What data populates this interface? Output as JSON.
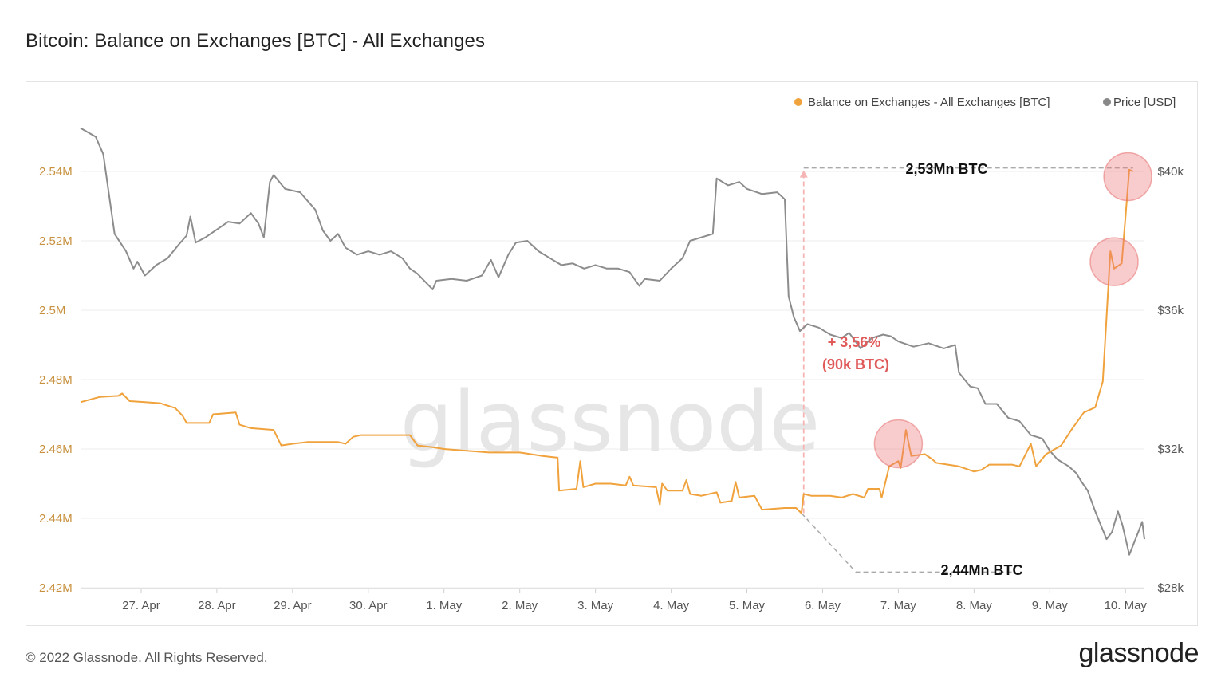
{
  "page": {
    "title": "Bitcoin: Balance on Exchanges [BTC] - All Exchanges",
    "copyright": "© 2022 Glassnode. All Rights Reserved.",
    "brand": "glassnode",
    "watermark": "glassnode"
  },
  "chart_data": {
    "type": "line",
    "title": "Bitcoin: Balance on Exchanges [BTC] - All Exchanges",
    "xlabel": "",
    "ylabel": "",
    "x_ticks": [
      "27. Apr",
      "28. Apr",
      "29. Apr",
      "30. Apr",
      "1. May",
      "2. May",
      "3. May",
      "4. May",
      "5. May",
      "6. May",
      "7. May",
      "8. May",
      "9. May",
      "10. May"
    ],
    "x_range": [
      -0.8,
      13.25
    ],
    "y_left": {
      "label": "Balance on Exchanges [BTC]",
      "ticks": [
        "2.42M",
        "2.44M",
        "2.46M",
        "2.48M",
        "2.5M",
        "2.52M",
        "2.54M"
      ],
      "tick_values": [
        2420000,
        2440000,
        2460000,
        2480000,
        2500000,
        2520000,
        2540000
      ],
      "ylim": [
        2420000,
        2540000
      ],
      "color": "#c8913f"
    },
    "y_right": {
      "label": "Price [USD]",
      "ticks": [
        "$28k",
        "$32k",
        "$36k",
        "$40k"
      ],
      "tick_values": [
        28000,
        32000,
        36000,
        40000
      ],
      "ylim": [
        28000,
        40000
      ],
      "color": "#555555"
    },
    "grid": true,
    "legend_position": "top-right",
    "legend": [
      {
        "name": "Balance on Exchanges - All Exchanges [BTC]",
        "color": "#f0a23c"
      },
      {
        "name": "Price [USD]",
        "color": "#888888"
      }
    ],
    "series": [
      {
        "name": "Balance on Exchanges - All Exchanges [BTC]",
        "axis": "left",
        "color": "#f0a23c",
        "points": [
          [
            -0.8,
            2473500
          ],
          [
            -0.55,
            2475000
          ],
          [
            -0.3,
            2475300
          ],
          [
            -0.25,
            2476000
          ],
          [
            -0.15,
            2473800
          ],
          [
            0.05,
            2473500
          ],
          [
            0.25,
            2473200
          ],
          [
            0.45,
            2471800
          ],
          [
            0.55,
            2469500
          ],
          [
            0.6,
            2467500
          ],
          [
            0.9,
            2467500
          ],
          [
            0.95,
            2470000
          ],
          [
            1.25,
            2470500
          ],
          [
            1.3,
            2467000
          ],
          [
            1.45,
            2466000
          ],
          [
            1.75,
            2465500
          ],
          [
            1.85,
            2461000
          ],
          [
            2.0,
            2461500
          ],
          [
            2.2,
            2462000
          ],
          [
            2.6,
            2462000
          ],
          [
            2.7,
            2461500
          ],
          [
            2.8,
            2463500
          ],
          [
            2.9,
            2464000
          ],
          [
            3.55,
            2464000
          ],
          [
            3.65,
            2461000
          ],
          [
            3.85,
            2460500
          ],
          [
            4.0,
            2460000
          ],
          [
            4.3,
            2459500
          ],
          [
            4.6,
            2459000
          ],
          [
            5.0,
            2459000
          ],
          [
            5.3,
            2458000
          ],
          [
            5.5,
            2457500
          ],
          [
            5.52,
            2448000
          ],
          [
            5.75,
            2448500
          ],
          [
            5.8,
            2456500
          ],
          [
            5.84,
            2449000
          ],
          [
            6.0,
            2450000
          ],
          [
            6.2,
            2450000
          ],
          [
            6.4,
            2449500
          ],
          [
            6.45,
            2452000
          ],
          [
            6.5,
            2449500
          ],
          [
            6.8,
            2449000
          ],
          [
            6.85,
            2444000
          ],
          [
            6.88,
            2450000
          ],
          [
            6.95,
            2448000
          ],
          [
            7.15,
            2448000
          ],
          [
            7.2,
            2451000
          ],
          [
            7.25,
            2447000
          ],
          [
            7.4,
            2446500
          ],
          [
            7.6,
            2447500
          ],
          [
            7.65,
            2444500
          ],
          [
            7.8,
            2445000
          ],
          [
            7.85,
            2450500
          ],
          [
            7.9,
            2446000
          ],
          [
            8.1,
            2446500
          ],
          [
            8.2,
            2442500
          ],
          [
            8.5,
            2443000
          ],
          [
            8.65,
            2443000
          ],
          [
            8.72,
            2441500
          ],
          [
            8.75,
            2447000
          ],
          [
            8.85,
            2446500
          ],
          [
            9.1,
            2446500
          ],
          [
            9.25,
            2446000
          ],
          [
            9.4,
            2447000
          ],
          [
            9.55,
            2446000
          ],
          [
            9.6,
            2448500
          ],
          [
            9.75,
            2448500
          ],
          [
            9.78,
            2446000
          ],
          [
            9.88,
            2455000
          ],
          [
            10.0,
            2456500
          ],
          [
            10.03,
            2454500
          ],
          [
            10.1,
            2465500
          ],
          [
            10.17,
            2458000
          ],
          [
            10.35,
            2458500
          ],
          [
            10.45,
            2457000
          ],
          [
            10.5,
            2456000
          ],
          [
            10.8,
            2455000
          ],
          [
            11.0,
            2453500
          ],
          [
            11.1,
            2454000
          ],
          [
            11.2,
            2455500
          ],
          [
            11.5,
            2455500
          ],
          [
            11.6,
            2455000
          ],
          [
            11.75,
            2461500
          ],
          [
            11.82,
            2455000
          ],
          [
            11.95,
            2458500
          ],
          [
            12.15,
            2461000
          ],
          [
            12.3,
            2466000
          ],
          [
            12.45,
            2470500
          ],
          [
            12.6,
            2472000
          ],
          [
            12.7,
            2479500
          ],
          [
            12.8,
            2517000
          ],
          [
            12.85,
            2512000
          ],
          [
            12.95,
            2513500
          ],
          [
            13.05,
            2540500
          ],
          [
            13.1,
            2540000
          ]
        ]
      },
      {
        "name": "Price [USD]",
        "axis": "right",
        "color": "#8c8c8c",
        "points": [
          [
            -0.8,
            41250
          ],
          [
            -0.6,
            41000
          ],
          [
            -0.5,
            40500
          ],
          [
            -0.35,
            38200
          ],
          [
            -0.2,
            37700
          ],
          [
            -0.1,
            37200
          ],
          [
            -0.05,
            37400
          ],
          [
            0.05,
            37000
          ],
          [
            0.2,
            37300
          ],
          [
            0.35,
            37500
          ],
          [
            0.5,
            37900
          ],
          [
            0.6,
            38150
          ],
          [
            0.65,
            38700
          ],
          [
            0.72,
            37950
          ],
          [
            0.85,
            38100
          ],
          [
            0.95,
            38250
          ],
          [
            1.05,
            38400
          ],
          [
            1.15,
            38550
          ],
          [
            1.3,
            38500
          ],
          [
            1.45,
            38800
          ],
          [
            1.55,
            38500
          ],
          [
            1.62,
            38100
          ],
          [
            1.7,
            39700
          ],
          [
            1.75,
            39900
          ],
          [
            1.9,
            39500
          ],
          [
            2.1,
            39400
          ],
          [
            2.3,
            38900
          ],
          [
            2.4,
            38300
          ],
          [
            2.5,
            38000
          ],
          [
            2.6,
            38200
          ],
          [
            2.7,
            37800
          ],
          [
            2.85,
            37600
          ],
          [
            3.0,
            37700
          ],
          [
            3.15,
            37600
          ],
          [
            3.3,
            37700
          ],
          [
            3.45,
            37500
          ],
          [
            3.55,
            37200
          ],
          [
            3.65,
            37050
          ],
          [
            3.85,
            36600
          ],
          [
            3.9,
            36850
          ],
          [
            4.1,
            36900
          ],
          [
            4.3,
            36850
          ],
          [
            4.5,
            37000
          ],
          [
            4.62,
            37450
          ],
          [
            4.72,
            36950
          ],
          [
            4.85,
            37600
          ],
          [
            4.95,
            37950
          ],
          [
            5.1,
            38000
          ],
          [
            5.25,
            37700
          ],
          [
            5.4,
            37500
          ],
          [
            5.55,
            37300
          ],
          [
            5.7,
            37350
          ],
          [
            5.85,
            37200
          ],
          [
            6.0,
            37300
          ],
          [
            6.15,
            37200
          ],
          [
            6.3,
            37200
          ],
          [
            6.45,
            37100
          ],
          [
            6.58,
            36700
          ],
          [
            6.65,
            36900
          ],
          [
            6.85,
            36850
          ],
          [
            7.0,
            37200
          ],
          [
            7.15,
            37500
          ],
          [
            7.25,
            38000
          ],
          [
            7.4,
            38100
          ],
          [
            7.55,
            38200
          ],
          [
            7.6,
            39800
          ],
          [
            7.75,
            39600
          ],
          [
            7.9,
            39700
          ],
          [
            8.0,
            39500
          ],
          [
            8.2,
            39350
          ],
          [
            8.4,
            39400
          ],
          [
            8.5,
            39200
          ],
          [
            8.55,
            36400
          ],
          [
            8.62,
            35800
          ],
          [
            8.7,
            35400
          ],
          [
            8.8,
            35600
          ],
          [
            8.95,
            35500
          ],
          [
            9.1,
            35300
          ],
          [
            9.25,
            35200
          ],
          [
            9.35,
            35350
          ],
          [
            9.5,
            34900
          ],
          [
            9.65,
            35200
          ],
          [
            9.8,
            35300
          ],
          [
            9.9,
            35250
          ],
          [
            10.0,
            35100
          ],
          [
            10.2,
            34950
          ],
          [
            10.4,
            35050
          ],
          [
            10.6,
            34900
          ],
          [
            10.75,
            35000
          ],
          [
            10.8,
            34200
          ],
          [
            10.95,
            33800
          ],
          [
            11.05,
            33750
          ],
          [
            11.15,
            33300
          ],
          [
            11.3,
            33300
          ],
          [
            11.45,
            32900
          ],
          [
            11.6,
            32800
          ],
          [
            11.75,
            32400
          ],
          [
            11.9,
            32300
          ],
          [
            12.0,
            31950
          ],
          [
            12.1,
            31700
          ],
          [
            12.25,
            31500
          ],
          [
            12.35,
            31300
          ],
          [
            12.42,
            31050
          ],
          [
            12.5,
            30800
          ],
          [
            12.6,
            30200
          ],
          [
            12.75,
            29400
          ],
          [
            12.82,
            29600
          ],
          [
            12.9,
            30200
          ],
          [
            12.96,
            29800
          ],
          [
            13.05,
            28950
          ],
          [
            13.15,
            29500
          ],
          [
            13.22,
            29900
          ],
          [
            13.25,
            29400
          ]
        ]
      }
    ],
    "annotations": [
      {
        "text": "2,53Mn BTC",
        "kind": "level-label"
      },
      {
        "text": "2,44Mn BTC",
        "kind": "level-label"
      },
      {
        "text": "+ 3,56%",
        "kind": "change-label"
      },
      {
        "text": "(90k BTC)",
        "kind": "change-label"
      }
    ],
    "highlights": [
      {
        "series": "Balance on Exchanges - All Exchanges [BTC]",
        "x": 10.0,
        "y": 2461500
      },
      {
        "series": "Balance on Exchanges - All Exchanges [BTC]",
        "x": 12.85,
        "y": 2514000
      },
      {
        "series": "Balance on Exchanges - All Exchanges [BTC]",
        "x": 13.03,
        "y": 2538500
      }
    ],
    "reference_levels": {
      "high": {
        "x_start": 8.75,
        "x_end": 13.1,
        "y": 2541000
      },
      "low": {
        "x_start": 8.72,
        "x_end": 11.5,
        "y_start": 2441500,
        "y_end": 2424500
      },
      "change_arrow_x": 8.75
    }
  }
}
